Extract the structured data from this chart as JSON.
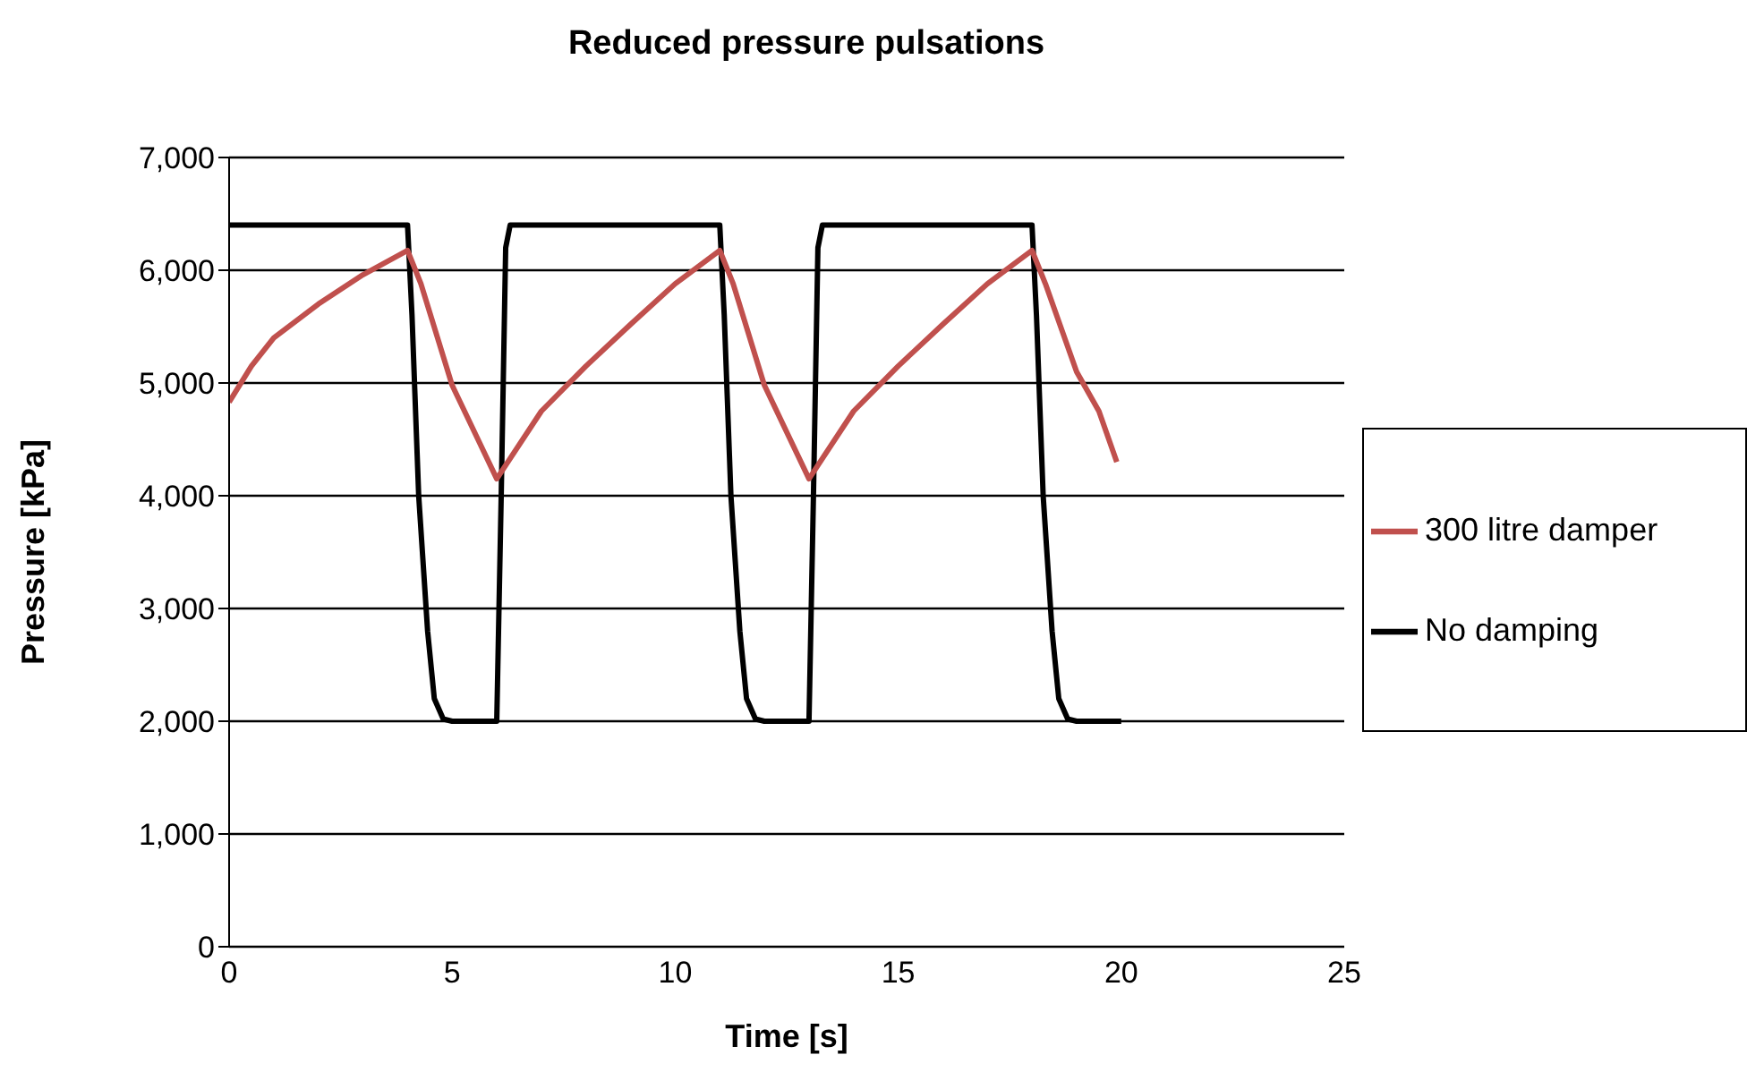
{
  "chart_data": {
    "type": "line",
    "title": "Reduced pressure pulsations",
    "xlabel": "Time [s]",
    "ylabel": "Pressure [kPa]",
    "xlim": [
      0,
      25
    ],
    "xticks": [
      0,
      5,
      10,
      15,
      20,
      25
    ],
    "ylim": [
      0,
      7000
    ],
    "yticks": [
      {
        "value": 0,
        "label": "0"
      },
      {
        "value": 1000,
        "label": "1,000"
      },
      {
        "value": 2000,
        "label": "2,000"
      },
      {
        "value": 3000,
        "label": "3,000"
      },
      {
        "value": 4000,
        "label": "4,000"
      },
      {
        "value": 5000,
        "label": "5,000"
      },
      {
        "value": 6000,
        "label": "6,000"
      },
      {
        "value": 7000,
        "label": "7,000"
      }
    ],
    "grid": "y",
    "legend": "right",
    "marker": "none",
    "line_style": "solid",
    "series": [
      {
        "name": "No damping",
        "color": "#000000",
        "x": [
          0,
          4.0,
          4.1,
          4.25,
          4.45,
          4.6,
          4.8,
          5.0,
          6.0,
          6.1,
          6.2,
          6.3,
          11.0,
          11.1,
          11.25,
          11.45,
          11.6,
          11.8,
          12.0,
          13.0,
          13.1,
          13.2,
          13.3,
          18.0,
          18.1,
          18.25,
          18.45,
          18.6,
          18.8,
          19.0,
          20.0
        ],
        "values": [
          6400,
          6400,
          5600,
          4000,
          2800,
          2200,
          2020,
          2000,
          2000,
          4000,
          6200,
          6400,
          6400,
          5600,
          4000,
          2800,
          2200,
          2020,
          2000,
          2000,
          4000,
          6200,
          6400,
          6400,
          5600,
          4000,
          2800,
          2200,
          2020,
          2000,
          2000
        ]
      },
      {
        "name": "300 litre damper",
        "color": "#c0504d",
        "x": [
          0,
          0.5,
          1,
          2,
          3,
          4,
          4.3,
          5,
          6,
          7,
          8,
          9,
          10,
          11,
          11.3,
          12,
          13,
          14,
          15,
          16,
          17,
          18,
          18.3,
          19,
          19.5,
          19.9
        ],
        "values": [
          4830,
          5150,
          5400,
          5700,
          5960,
          6175,
          5880,
          4980,
          4150,
          4750,
          5150,
          5520,
          5880,
          6175,
          5880,
          4980,
          4150,
          4750,
          5150,
          5520,
          5880,
          6175,
          5880,
          5100,
          4750,
          4300
        ]
      }
    ]
  }
}
